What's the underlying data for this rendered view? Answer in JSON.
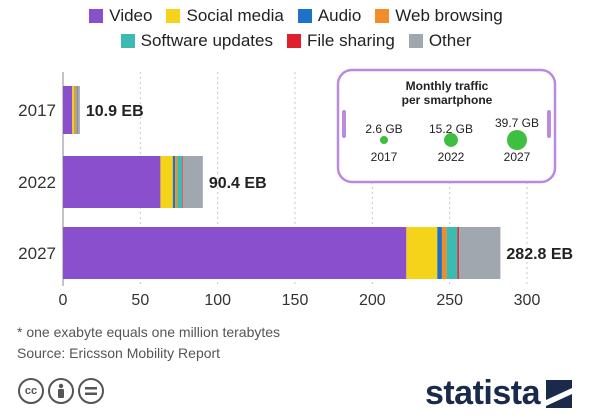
{
  "legend": [
    {
      "label": "Video",
      "color": "#8a4fcc"
    },
    {
      "label": "Social media",
      "color": "#f5d31b"
    },
    {
      "label": "Audio",
      "color": "#1a73c9"
    },
    {
      "label": "Web browsing",
      "color": "#f28c28"
    },
    {
      "label": "Software updates",
      "color": "#3dbbb3"
    },
    {
      "label": "File sharing",
      "color": "#e0202a"
    },
    {
      "label": "Other",
      "color": "#a0a7ae"
    }
  ],
  "chart_data": {
    "type": "bar",
    "orientation": "horizontal",
    "stacked": true,
    "categories": [
      "2017",
      "2022",
      "2027"
    ],
    "series": [
      {
        "name": "Video",
        "values": [
          6.0,
          63.0,
          222.0
        ]
      },
      {
        "name": "Social media",
        "values": [
          1.5,
          8.0,
          20.0
        ]
      },
      {
        "name": "Audio",
        "values": [
          0.3,
          1.5,
          3.0
        ]
      },
      {
        "name": "Web browsing",
        "values": [
          0.8,
          1.5,
          3.0
        ]
      },
      {
        "name": "Software updates",
        "values": [
          0.5,
          3.0,
          7.0
        ]
      },
      {
        "name": "File sharing",
        "values": [
          0.2,
          0.5,
          1.0
        ]
      },
      {
        "name": "Other",
        "values": [
          1.6,
          12.9,
          26.8
        ]
      }
    ],
    "totals": [
      "10.9 EB",
      "90.4 EB",
      "282.8 EB"
    ],
    "xlim": [
      0,
      300
    ],
    "xticks": [
      "0",
      "50",
      "100",
      "150",
      "200",
      "250",
      "300"
    ],
    "grid": true
  },
  "inset": {
    "title_line1": "Monthly traffic",
    "title_line2": "per smartphone",
    "items": [
      {
        "value_label": "2.6 GB",
        "year": "2017",
        "value": 2.6
      },
      {
        "value_label": "15.2 GB",
        "year": "2022",
        "value": 15.2
      },
      {
        "value_label": "39.7 GB",
        "year": "2027",
        "value": 39.7
      }
    ],
    "dot_color": "#3fbf3f",
    "frame_color": "#b98be0"
  },
  "footnote": {
    "note": "* one exabyte equals one million terabytes",
    "source": "Source: Ericsson Mobility Report"
  },
  "logo": {
    "text": "statista"
  }
}
